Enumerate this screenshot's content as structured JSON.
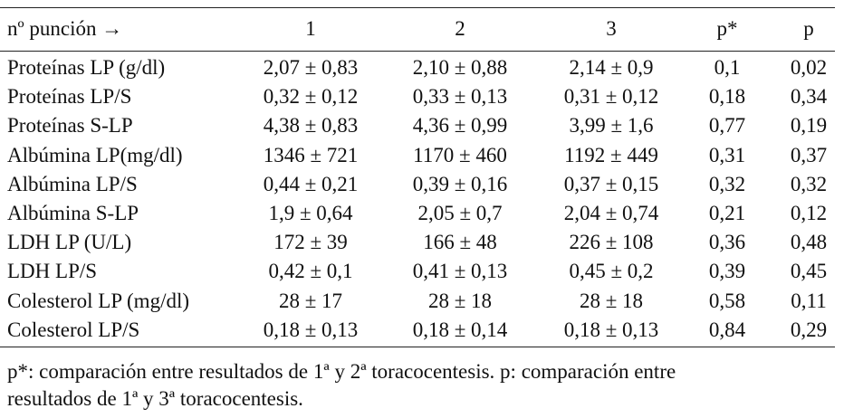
{
  "table": {
    "header": [
      "nº punción →",
      "1",
      "2",
      "3",
      "p*",
      "p"
    ],
    "rows": [
      [
        "Proteínas LP (g/dl)",
        "2,07 ± 0,83",
        "2,10 ± 0,88",
        "2,14 ± 0,9",
        "0,1",
        "0,02"
      ],
      [
        "Proteínas LP/S",
        "0,32 ± 0,12",
        "0,33 ± 0,13",
        "0,31 ± 0,12",
        "0,18",
        "0,34"
      ],
      [
        "Proteínas S-LP",
        "4,38 ± 0,83",
        "4,36 ± 0,99",
        "3,99 ± 1,6",
        "0,77",
        "0,19"
      ],
      [
        "Albúmina LP(mg/dl)",
        "1346 ± 721",
        "1170 ± 460",
        "1192 ± 449",
        "0,31",
        "0,37"
      ],
      [
        "Albúmina LP/S",
        "0,44 ± 0,21",
        "0,39 ± 0,16",
        "0,37 ± 0,15",
        "0,32",
        "0,32"
      ],
      [
        "Albúmina S-LP",
        "1,9 ± 0,64",
        "2,05 ± 0,7",
        "2,04 ± 0,74",
        "0,21",
        "0,12"
      ],
      [
        "LDH LP (U/L)",
        "172 ± 39",
        "166 ± 48",
        "226 ± 108",
        "0,36",
        "0,48"
      ],
      [
        "LDH LP/S",
        "0,42 ± 0,1",
        "0,41 ± 0,13",
        "0,45 ± 0,2",
        "0,39",
        "0,45"
      ],
      [
        "Colesterol LP (mg/dl)",
        "28 ± 17",
        "28 ± 18",
        "28 ± 18",
        "0,58",
        "0,11"
      ],
      [
        "Colesterol LP/S",
        "0,18 ± 0,13",
        "0,18 ± 0,14",
        "0,18 ± 0,13",
        "0,84",
        "0,29"
      ]
    ],
    "footnote": [
      "p*: comparación entre resultados de 1ª y 2ª toracocentesis. p: comparación entre",
      "resultados de 1ª y 3ª toracocentesis."
    ]
  }
}
